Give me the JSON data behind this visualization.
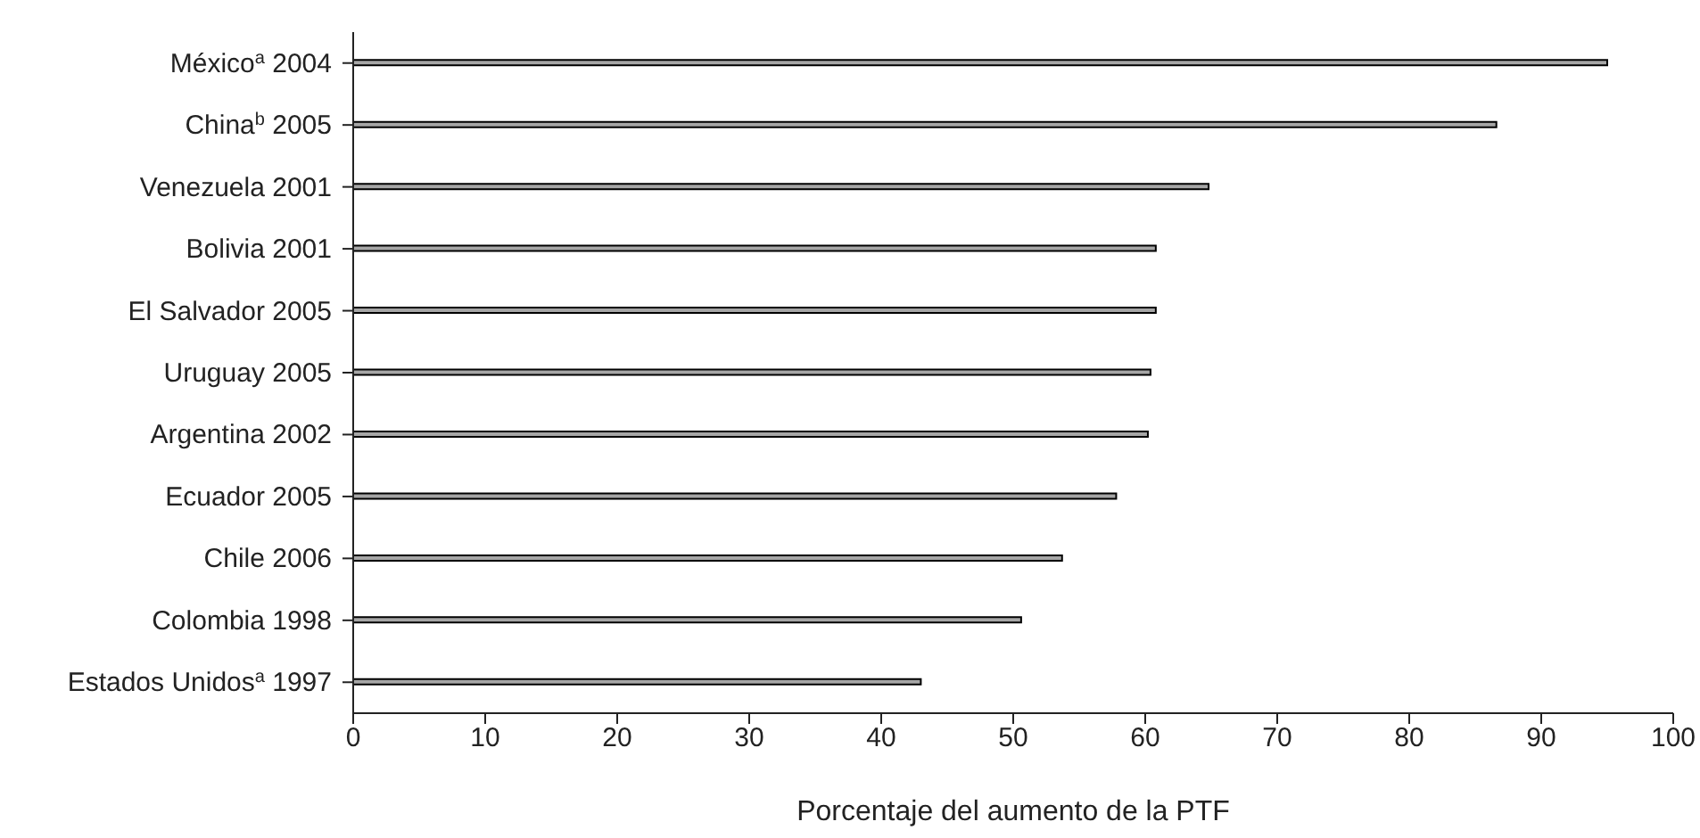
{
  "chart_data": {
    "type": "bar",
    "orientation": "horizontal",
    "xlabel": "Porcentaje del aumento de la PTF",
    "categories": [
      "México$^{a}$ 2004",
      "China$^{b}$ 2005",
      "Venezuela 2001",
      "Bolivia 2001",
      "El Salvador 2005",
      "Uruguay 2005",
      "Argentina 2002",
      "Ecuador 2005",
      "Chile 2006",
      "Colombia 1998",
      "Estados Unidos$^{a}$ 1997"
    ],
    "values": [
      95.0,
      86.6,
      64.8,
      60.8,
      60.8,
      60.4,
      60.2,
      57.8,
      53.7,
      50.6,
      43.0
    ],
    "color": "#a6a6a6",
    "xlim": [
      0,
      100
    ],
    "xticks": [
      0,
      10,
      20,
      30,
      40,
      50,
      60,
      70,
      80,
      90,
      100
    ],
    "grid": false,
    "legend": false
  }
}
